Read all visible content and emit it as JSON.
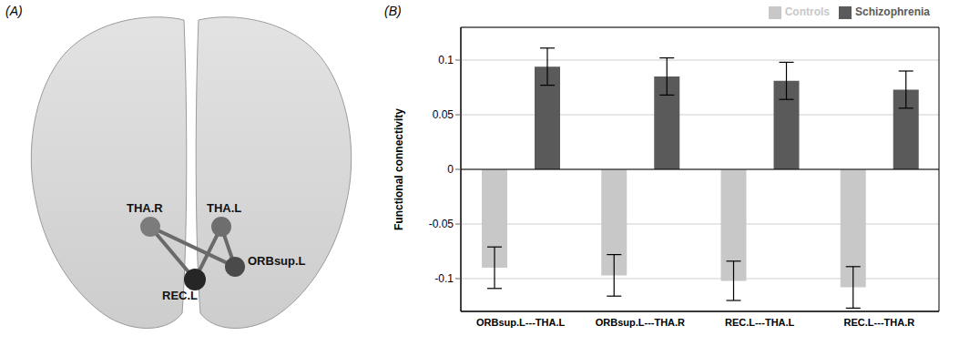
{
  "panel_labels": [
    "(A)",
    "(B)"
  ],
  "diagram": {
    "nodes": [
      {
        "label": "THA.R"
      },
      {
        "label": "THA.L"
      },
      {
        "label": "ORBsup.L"
      },
      {
        "label": "REC.L"
      }
    ],
    "edges": [
      [
        "THA.R",
        "REC.L"
      ],
      [
        "THA.R",
        "ORBsup.L"
      ],
      [
        "THA.L",
        "REC.L"
      ],
      [
        "THA.L",
        "ORBsup.L"
      ]
    ]
  },
  "chart_data": {
    "type": "bar",
    "ylabel": "Functional connectivity",
    "categories": [
      "ORBsup.L---THA.L",
      "ORBsup.L---THA.R",
      "REC.L---THA.L",
      "REC.L---THA.R"
    ],
    "series": [
      {
        "name": "Controls",
        "color": "#c8c8c8",
        "values": [
          -0.09,
          -0.097,
          -0.102,
          -0.108
        ],
        "errors": [
          0.019,
          0.019,
          0.018,
          0.019
        ]
      },
      {
        "name": "Schizophrenia",
        "color": "#5a5a5a",
        "values": [
          0.094,
          0.085,
          0.081,
          0.073
        ],
        "errors": [
          0.017,
          0.017,
          0.017,
          0.017
        ]
      }
    ],
    "ylim": [
      -0.13,
      0.13
    ],
    "yticks": [
      -0.1,
      -0.05,
      0,
      0.05,
      0.1
    ],
    "grid": true,
    "legend": "upper right"
  }
}
